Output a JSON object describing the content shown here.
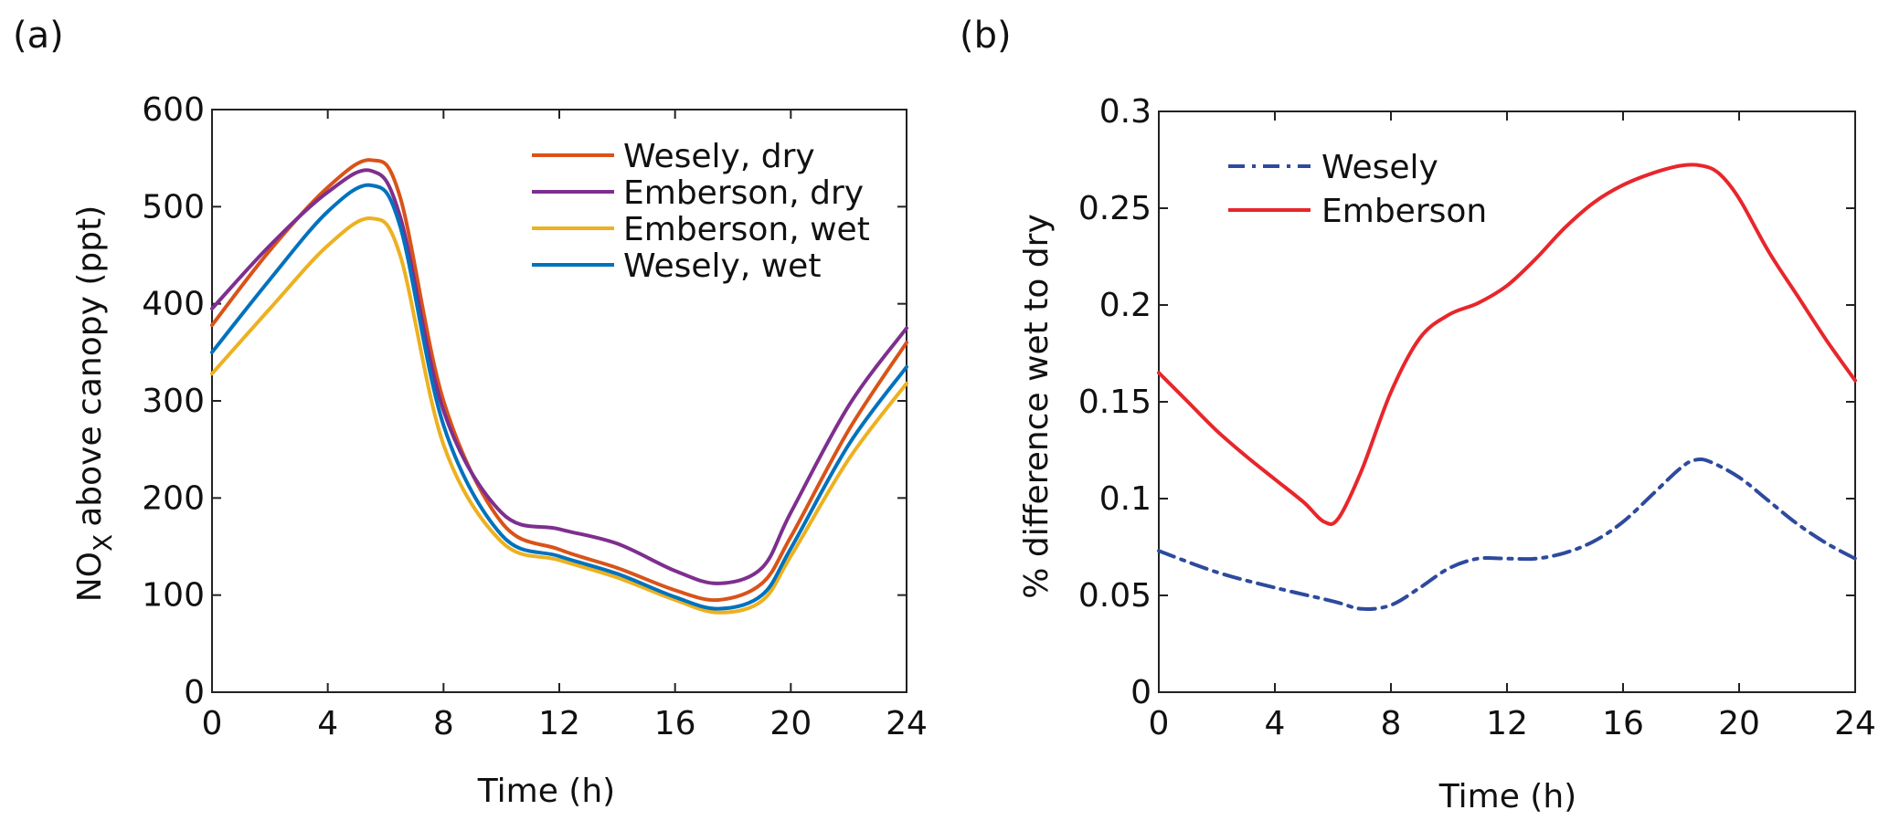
{
  "chart_data": [
    {
      "panel": "(a)",
      "type": "line",
      "xlabel": "Time (h)",
      "ylabel": "above canopy (ppt)",
      "ylabel_species": "NO",
      "ylabel_subscript": "X",
      "xlim": [
        0,
        24
      ],
      "ylim": [
        0,
        600
      ],
      "xticks": [
        0,
        4,
        8,
        12,
        16,
        20,
        24
      ],
      "yticks": [
        0,
        100,
        200,
        300,
        400,
        500,
        600
      ],
      "legend_position": "top-right",
      "x": [
        0,
        2,
        4,
        5.5,
        6.5,
        8,
        10,
        12,
        14,
        16,
        17.5,
        19,
        20,
        22,
        24
      ],
      "series": [
        {
          "name": "Wesely, dry",
          "color": "#d95319",
          "style": "solid",
          "values": [
            378,
            455,
            520,
            548,
            510,
            300,
            175,
            147,
            128,
            105,
            95,
            112,
            160,
            270,
            360
          ]
        },
        {
          "name": "Emberson, dry",
          "color": "#7e2f8e",
          "style": "solid",
          "values": [
            395,
            460,
            515,
            537,
            490,
            290,
            185,
            168,
            153,
            125,
            112,
            128,
            185,
            295,
            375
          ]
        },
        {
          "name": "Emberson, wet",
          "color": "#edb120",
          "style": "solid",
          "values": [
            328,
            395,
            460,
            488,
            450,
            255,
            155,
            136,
            118,
            95,
            82,
            94,
            140,
            240,
            318
          ]
        },
        {
          "name": "Wesely, wet",
          "color": "#0072bd",
          "style": "solid",
          "values": [
            350,
            425,
            495,
            522,
            480,
            275,
            162,
            140,
            122,
            98,
            86,
            100,
            148,
            255,
            335
          ]
        }
      ]
    },
    {
      "panel": "(b)",
      "type": "line",
      "xlabel": "Time (h)",
      "ylabel": "% difference wet to dry",
      "xlim": [
        0,
        24
      ],
      "ylim": [
        0,
        0.3
      ],
      "xticks": [
        0,
        4,
        8,
        12,
        16,
        20,
        24
      ],
      "yticks": [
        0,
        0.05,
        0.1,
        0.15,
        0.2,
        0.25,
        0.3
      ],
      "ytick_labels": [
        "0",
        "0.05",
        "0.1",
        "0.15",
        "0.2",
        "0.25",
        "0.3"
      ],
      "legend_position": "top-left",
      "series": [
        {
          "name": "Wesely",
          "color": "#2e4a9e",
          "style": "dashdot",
          "x": [
            0,
            2,
            4,
            6,
            7,
            8,
            9,
            10,
            11,
            12,
            13,
            14,
            15,
            16,
            17,
            18,
            18.5,
            19,
            20,
            21,
            22,
            23,
            24
          ],
          "values": [
            0.073,
            0.062,
            0.054,
            0.047,
            0.043,
            0.045,
            0.054,
            0.064,
            0.069,
            0.069,
            0.069,
            0.072,
            0.078,
            0.088,
            0.102,
            0.116,
            0.12,
            0.119,
            0.111,
            0.099,
            0.087,
            0.077,
            0.069
          ]
        },
        {
          "name": "Emberson",
          "color": "#e8262b",
          "style": "solid",
          "x": [
            0,
            1,
            2,
            3,
            4,
            5,
            5.7,
            6.2,
            7,
            8,
            9,
            10,
            11,
            12,
            13,
            14,
            15,
            16,
            17,
            18,
            18.7,
            19.3,
            20,
            21,
            22,
            23,
            24
          ],
          "values": [
            0.165,
            0.15,
            0.135,
            0.122,
            0.11,
            0.098,
            0.088,
            0.09,
            0.115,
            0.155,
            0.183,
            0.195,
            0.201,
            0.21,
            0.224,
            0.24,
            0.253,
            0.262,
            0.268,
            0.272,
            0.272,
            0.268,
            0.255,
            0.228,
            0.205,
            0.182,
            0.161
          ]
        }
      ]
    }
  ]
}
